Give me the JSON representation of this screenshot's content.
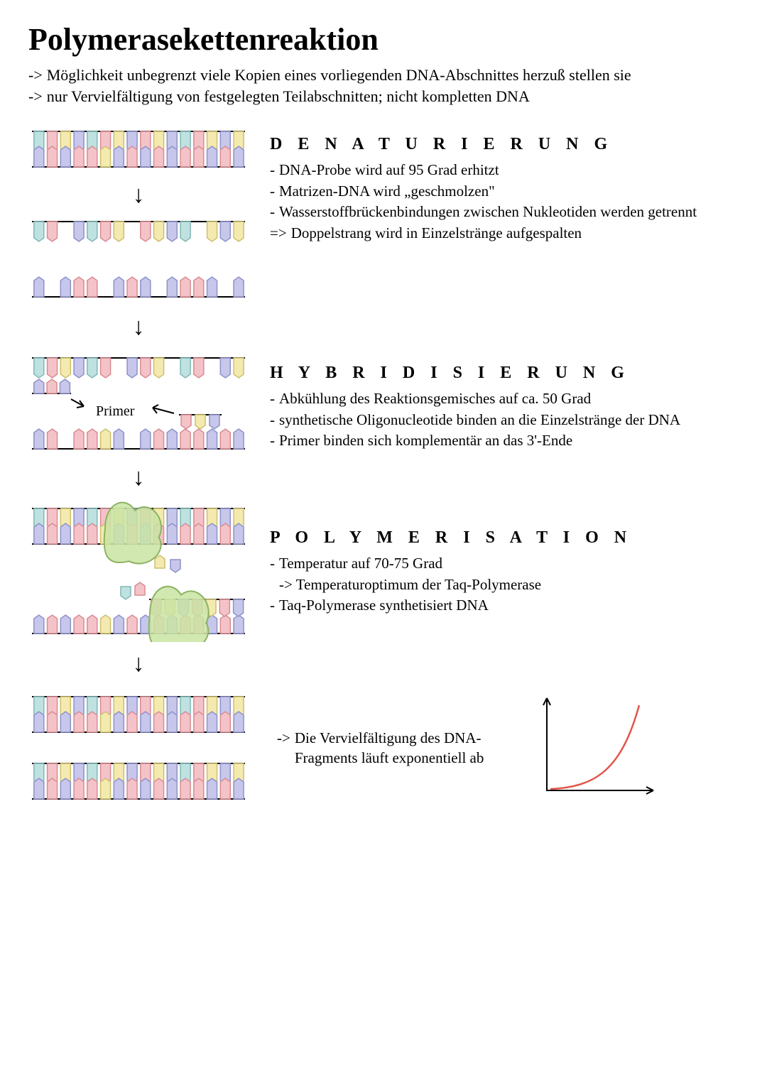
{
  "title": "Polymerasekettenreaktion",
  "intro": {
    "arrow": "->",
    "line1": "Möglichkeit unbegrenzt viele Kopien eines vorliegenden DNA-Abschnittes herzuß stellen sie",
    "line2": "nur Vervielfältigung von festgelegten Teilabschnitten; nicht kompletten DNA"
  },
  "stages": {
    "denat": {
      "title": "D E N A T U R I E R U N G",
      "p1": "DNA-Probe wird auf 95 Grad erhitzt",
      "p2": "Matrizen-DNA wird „geschmolzen\"",
      "p3": "Wasserstoffbrückenbindungen zwischen Nukleotiden werden getrennt",
      "p4": "Doppelstrang wird in Einzelstränge aufgespalten"
    },
    "hybrid": {
      "title": "H Y B R I D I S I E R U N G",
      "p1": "Abkühlung des Reaktionsgemisches auf ca. 50 Grad",
      "p2": "synthetische Oligonucleotide binden an die Einzelstränge der DNA",
      "p3": "Primer binden sich komplementär an das 3'-Ende"
    },
    "poly": {
      "title": "P O L Y M E R I S A T I O N",
      "p1": "Temperatur auf 70-75 Grad",
      "p1b": "-> Temperaturoptimum der Taq-Polymerase",
      "p2": "Taq-Polymerase synthetisiert DNA"
    }
  },
  "primer_label": "Primer",
  "final": {
    "arrow": "->",
    "text": "Die Vervielfältigung des DNA-Fragments läuft exponentiell ab"
  },
  "dna_style": {
    "colors": {
      "pink": {
        "fill": "#f3c3c7",
        "stroke": "#d98b94"
      },
      "blue": {
        "fill": "#c6c7ea",
        "stroke": "#8f91c9"
      },
      "yellow": {
        "fill": "#f4eab0",
        "stroke": "#cdbf6e"
      },
      "teal": {
        "fill": "#bfe1e0",
        "stroke": "#7fb9b7"
      },
      "enzyme": {
        "fill": "#c9e4a3",
        "stroke": "#8db362"
      },
      "backbone": "#000000"
    },
    "exp_curve_color": "#e2554a",
    "top_pattern": [
      "teal",
      "pink",
      "yellow",
      "blue",
      "teal",
      "pink",
      "yellow",
      "blue",
      "pink",
      "yellow",
      "blue",
      "teal",
      "pink",
      "yellow",
      "blue",
      "yellow"
    ],
    "bot_pattern": [
      "blue",
      "pink",
      "blue",
      "pink",
      "pink",
      "yellow",
      "blue",
      "pink",
      "blue",
      "pink",
      "blue",
      "pink",
      "pink",
      "blue",
      "pink",
      "blue"
    ]
  }
}
